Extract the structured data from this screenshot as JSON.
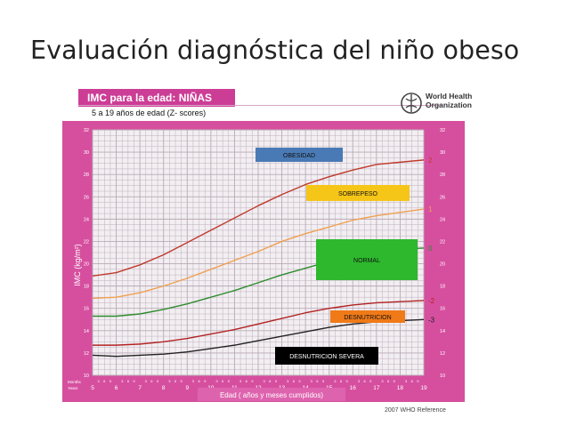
{
  "slide": {
    "title": "Evaluación diagnóstica del niño obeso"
  },
  "header": {
    "badge": "IMC para la edad: NIÑAS",
    "subtitle": "5 a 19 años de edad (Z- scores)",
    "logo_line1": "World Health",
    "logo_line2": "Organization",
    "reference": "2007 WHO Reference"
  },
  "chart_data": {
    "type": "line",
    "ylabel": "IMC (kg/m²)",
    "xlabel": "Edad ( años y meses cumplidos)",
    "x_ticks": [
      "5",
      "6",
      "7",
      "8",
      "9",
      "10",
      "11",
      "12",
      "13",
      "14",
      "15",
      "16",
      "17",
      "18",
      "19"
    ],
    "x_corner_label": [
      "Months",
      "Years"
    ],
    "month_ticks": [
      "3",
      "6",
      "9"
    ],
    "y_ticks": [
      10,
      12,
      14,
      16,
      18,
      20,
      22,
      24,
      26,
      28,
      30,
      32
    ],
    "xlim": [
      5,
      19
    ],
    "ylim": [
      10,
      32
    ],
    "grid": true,
    "series": [
      {
        "name": "2",
        "color": "#c0392b",
        "x": [
          5,
          6,
          7,
          8,
          9,
          10,
          11,
          12,
          13,
          14,
          15,
          16,
          17,
          18,
          19
        ],
        "y": [
          18.9,
          19.2,
          19.9,
          20.8,
          21.9,
          23.0,
          24.1,
          25.2,
          26.2,
          27.1,
          27.8,
          28.4,
          28.9,
          29.1,
          29.3
        ]
      },
      {
        "name": "1",
        "color": "#f0a050",
        "x": [
          5,
          6,
          7,
          8,
          9,
          10,
          11,
          12,
          13,
          14,
          15,
          16,
          17,
          18,
          19
        ],
        "y": [
          16.9,
          17.0,
          17.4,
          18.0,
          18.7,
          19.5,
          20.3,
          21.1,
          22.0,
          22.7,
          23.3,
          23.9,
          24.3,
          24.6,
          24.9
        ]
      },
      {
        "name": "0",
        "color": "#2e8b2e",
        "x": [
          5,
          6,
          7,
          8,
          9,
          10,
          11,
          12,
          13,
          14,
          15,
          16,
          17,
          18,
          19
        ],
        "y": [
          15.3,
          15.3,
          15.5,
          15.9,
          16.4,
          17.0,
          17.6,
          18.3,
          19.0,
          19.6,
          20.2,
          20.6,
          21.0,
          21.3,
          21.4
        ]
      },
      {
        "name": "-2",
        "color": "#b22222",
        "x": [
          5,
          6,
          7,
          8,
          9,
          10,
          11,
          12,
          13,
          14,
          15,
          16,
          17,
          18,
          19
        ],
        "y": [
          12.7,
          12.7,
          12.8,
          13.0,
          13.3,
          13.7,
          14.1,
          14.6,
          15.1,
          15.6,
          16.0,
          16.3,
          16.5,
          16.6,
          16.7
        ]
      },
      {
        "name": "-3",
        "color": "#222222",
        "x": [
          5,
          6,
          7,
          8,
          9,
          10,
          11,
          12,
          13,
          14,
          15,
          16,
          17,
          18,
          19
        ],
        "y": [
          11.8,
          11.7,
          11.8,
          11.9,
          12.1,
          12.4,
          12.7,
          13.1,
          13.5,
          13.9,
          14.3,
          14.6,
          14.8,
          14.9,
          15.0
        ]
      }
    ],
    "annotations": [
      {
        "text": "OBESIDAD",
        "bg": "#4a7ab5",
        "fg": "#111111"
      },
      {
        "text": "SOBREPESO",
        "bg": "#f5c518",
        "fg": "#111111"
      },
      {
        "text": "NORMAL",
        "bg": "#2db82d",
        "fg": "#111111"
      },
      {
        "text": "DESNUTRICION",
        "bg": "#f07a18",
        "fg": "#111111"
      },
      {
        "text": "DESNUTRICION SEVERA",
        "bg": "#000000",
        "fg": "#ffffff"
      }
    ]
  },
  "colors": {
    "chart_bg": "#d64f9f",
    "grid_area": "#f2eef2",
    "grid_line": "#b9aab6",
    "brand_pink": "#cc3d96"
  }
}
